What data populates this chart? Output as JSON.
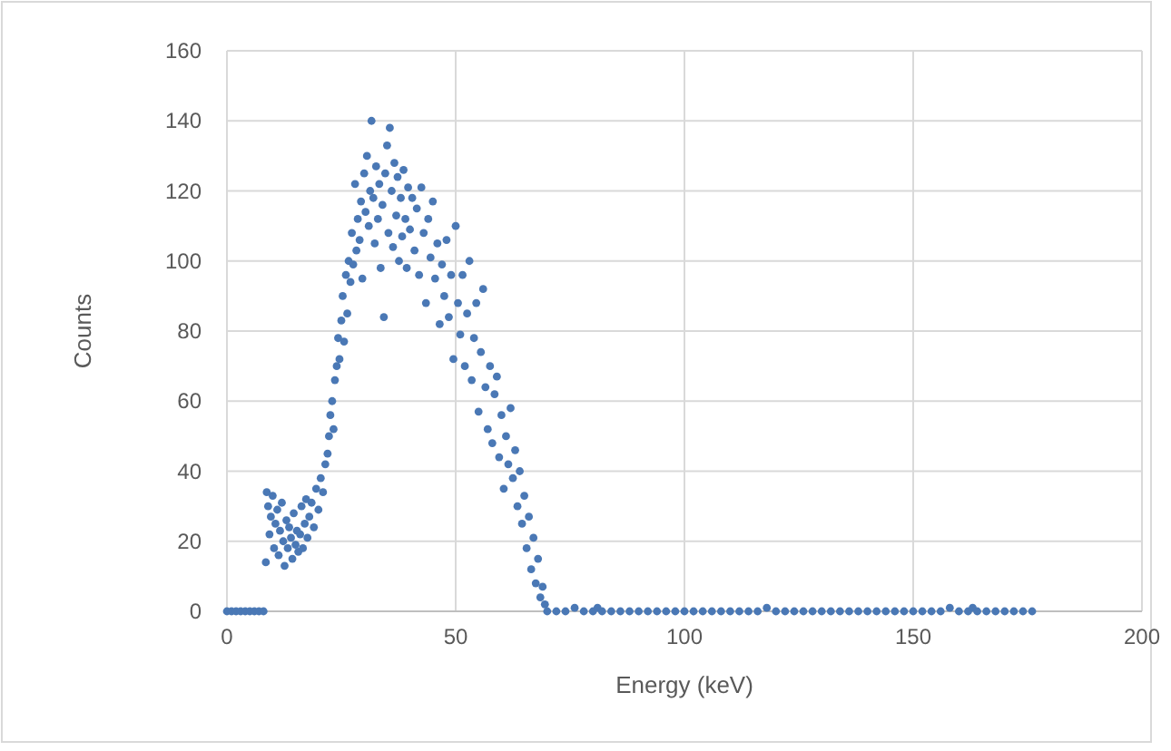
{
  "chart_data": {
    "type": "scatter",
    "xlabel": "Energy (keV)",
    "ylabel": "Counts",
    "color": "#4a78b5",
    "marker": "circle",
    "grid": true,
    "xlim": [
      0,
      200
    ],
    "xticks": [
      0,
      50,
      100,
      150,
      200
    ],
    "ylim": [
      0,
      160
    ],
    "yticks": [
      0,
      20,
      40,
      60,
      80,
      100,
      120,
      140,
      160
    ],
    "x": [
      0,
      1,
      2,
      3,
      4,
      5,
      6,
      7,
      8,
      8.5,
      8.7,
      9,
      9.3,
      9.6,
      10,
      10.3,
      10.6,
      11,
      11.3,
      11.6,
      12,
      12.3,
      12.6,
      13,
      13.3,
      13.6,
      14,
      14.3,
      14.6,
      15,
      15.3,
      15.6,
      16,
      16.3,
      16.6,
      17,
      17.3,
      17.6,
      18,
      18.5,
      19,
      19.5,
      20,
      20.5,
      21,
      21.5,
      22,
      22.3,
      22.6,
      23,
      23.3,
      23.6,
      24,
      24.3,
      24.6,
      25,
      25.3,
      25.6,
      26,
      26.3,
      26.6,
      27,
      27.3,
      27.6,
      28,
      28.3,
      28.6,
      29,
      29.3,
      29.6,
      30,
      30.3,
      30.6,
      31,
      31.3,
      31.6,
      32,
      32.3,
      32.6,
      33,
      33.3,
      33.6,
      34,
      34.3,
      34.6,
      35,
      35.3,
      35.6,
      36,
      36.3,
      36.6,
      37,
      37.3,
      37.6,
      38,
      38.3,
      38.6,
      39,
      39.3,
      39.6,
      40,
      40.5,
      41,
      41.5,
      42,
      42.5,
      43,
      43.5,
      44,
      44.5,
      45,
      45.5,
      46,
      46.5,
      47,
      47.5,
      48,
      48.5,
      49,
      49.5,
      50,
      50.5,
      51,
      51.5,
      52,
      52.5,
      53,
      53.5,
      54,
      54.5,
      55,
      55.5,
      56,
      56.5,
      57,
      57.5,
      58,
      58.5,
      59,
      59.5,
      60,
      60.5,
      61,
      61.5,
      62,
      62.5,
      63,
      63.5,
      64,
      64.5,
      65,
      65.5,
      66,
      66.5,
      67,
      67.5,
      68,
      68.5,
      69,
      69.5,
      70,
      72,
      74,
      76,
      78,
      80,
      81,
      82,
      84,
      86,
      88,
      90,
      92,
      94,
      96,
      98,
      100,
      102,
      104,
      106,
      108,
      110,
      112,
      114,
      116,
      118,
      120,
      122,
      124,
      126,
      128,
      130,
      132,
      134,
      136,
      138,
      140,
      142,
      144,
      146,
      148,
      150,
      152,
      154,
      156,
      158,
      160,
      162,
      163,
      164,
      166,
      168,
      170,
      172,
      174,
      176
    ],
    "values": [
      0,
      0,
      0,
      0,
      0,
      0,
      0,
      0,
      0,
      14,
      34,
      30,
      22,
      27,
      33,
      18,
      25,
      29,
      16,
      23,
      31,
      20,
      13,
      26,
      18,
      24,
      21,
      15,
      28,
      19,
      23,
      17,
      22,
      30,
      18,
      25,
      32,
      21,
      27,
      31,
      24,
      35,
      29,
      38,
      34,
      42,
      45,
      50,
      56,
      60,
      52,
      66,
      70,
      78,
      72,
      83,
      90,
      77,
      96,
      85,
      100,
      94,
      108,
      99,
      122,
      103,
      112,
      106,
      117,
      95,
      125,
      114,
      130,
      110,
      120,
      140,
      118,
      105,
      127,
      112,
      122,
      98,
      116,
      84,
      125,
      133,
      108,
      138,
      120,
      104,
      128,
      113,
      124,
      100,
      118,
      107,
      126,
      112,
      98,
      121,
      109,
      118,
      103,
      115,
      96,
      121,
      108,
      88,
      112,
      101,
      117,
      95,
      105,
      82,
      99,
      90,
      106,
      84,
      96,
      72,
      110,
      88,
      79,
      96,
      70,
      85,
      100,
      66,
      78,
      88,
      57,
      74,
      92,
      64,
      52,
      70,
      48,
      62,
      67,
      44,
      56,
      35,
      50,
      42,
      58,
      38,
      46,
      30,
      40,
      25,
      33,
      18,
      27,
      12,
      21,
      8,
      15,
      4,
      7,
      2,
      0,
      0,
      0,
      1,
      0,
      0,
      1,
      0,
      0,
      0,
      0,
      0,
      0,
      0,
      0,
      0,
      0,
      0,
      0,
      0,
      0,
      0,
      0,
      0,
      0,
      1,
      0,
      0,
      0,
      0,
      0,
      0,
      0,
      0,
      0,
      0,
      0,
      0,
      0,
      0,
      0,
      0,
      0,
      0,
      0,
      1,
      0,
      0,
      1,
      0,
      0,
      0,
      0,
      0,
      0,
      0
    ]
  }
}
